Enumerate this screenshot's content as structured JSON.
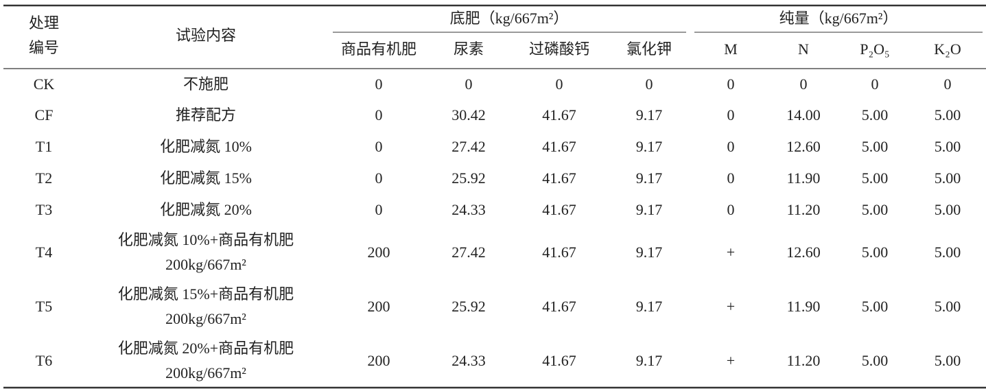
{
  "header": {
    "id": [
      "处理",
      "编号"
    ],
    "content": "试验内容",
    "groups": [
      {
        "title": "底肥（kg/667m²）",
        "columns": [
          "商品有机肥",
          "尿素",
          "过磷酸钙",
          "氯化钾"
        ]
      },
      {
        "title": "纯量（kg/667m²）",
        "columns": [
          "M",
          "N",
          "P₂O₅",
          "K₂O"
        ]
      }
    ]
  },
  "rows": [
    {
      "id": "CK",
      "content": [
        "不施肥"
      ],
      "cells": [
        "0",
        "0",
        "0",
        "0",
        "0",
        "0",
        "0",
        "0"
      ]
    },
    {
      "id": "CF",
      "content": [
        "推荐配方"
      ],
      "cells": [
        "0",
        "30.42",
        "41.67",
        "9.17",
        "0",
        "14.00",
        "5.00",
        "5.00"
      ]
    },
    {
      "id": "T1",
      "content": [
        "化肥减氮 10%"
      ],
      "cells": [
        "0",
        "27.42",
        "41.67",
        "9.17",
        "0",
        "12.60",
        "5.00",
        "5.00"
      ]
    },
    {
      "id": "T2",
      "content": [
        "化肥减氮 15%"
      ],
      "cells": [
        "0",
        "25.92",
        "41.67",
        "9.17",
        "0",
        "11.90",
        "5.00",
        "5.00"
      ]
    },
    {
      "id": "T3",
      "content": [
        "化肥减氮 20%"
      ],
      "cells": [
        "0",
        "24.33",
        "41.67",
        "9.17",
        "0",
        "11.20",
        "5.00",
        "5.00"
      ]
    },
    {
      "id": "T4",
      "content": [
        "化肥减氮 10%+商品有机肥",
        "200kg/667m²"
      ],
      "cells": [
        "200",
        "27.42",
        "41.67",
        "9.17",
        "+",
        "12.60",
        "5.00",
        "5.00"
      ]
    },
    {
      "id": "T5",
      "content": [
        "化肥减氮 15%+商品有机肥",
        "200kg/667m²"
      ],
      "cells": [
        "200",
        "25.92",
        "41.67",
        "9.17",
        "+",
        "11.90",
        "5.00",
        "5.00"
      ]
    },
    {
      "id": "T6",
      "content": [
        "化肥减氮 20%+商品有机肥",
        "200kg/667m²"
      ],
      "cells": [
        "200",
        "24.33",
        "41.67",
        "9.17",
        "+",
        "11.20",
        "5.00",
        "5.00"
      ]
    }
  ]
}
